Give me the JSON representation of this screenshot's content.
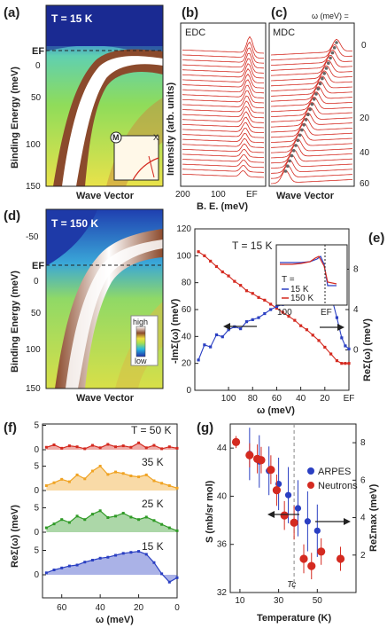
{
  "colors": {
    "red": "#d42a20",
    "blue": "#2a3fc2",
    "orange": "#f0a323",
    "green": "#2f9a26",
    "ediff": "#d0d0d0"
  },
  "panels": {
    "a": {
      "label": "(a)",
      "temp": "T = 15 K",
      "ylabel": "Binding Energy (meV)",
      "xlabel": "Wave Vector",
      "ef": "EF",
      "yticks": [
        "0",
        "50",
        "100",
        "150"
      ],
      "inset_m": "M",
      "inset_x": "X"
    },
    "b": {
      "label": "(b)",
      "title": "EDC",
      "ylabel": "Intensity (arb. units)",
      "xlabel": "B. E. (meV)",
      "xticks": [
        "200",
        "100",
        "EF"
      ]
    },
    "c": {
      "label": "(c)",
      "title": "MDC",
      "omega": "ω (meV) =",
      "xlabel": "Wave Vector",
      "rticks": [
        "0",
        "20",
        "40",
        "60"
      ]
    },
    "d": {
      "label": "(d)",
      "temp": "T = 150 K",
      "ylabel": "Binding Energy (meV)",
      "xlabel": "Wave Vector",
      "ef": "EF",
      "yticks": [
        "-50",
        "0",
        "50",
        "100",
        "150"
      ],
      "high": "high",
      "low": "low"
    },
    "e": {
      "label": "(e)",
      "temp": "T = 15 K",
      "ylabel": "-ImΣ(ω) (meV)",
      "ylabel_r": "ReΣ(ω) (meV)",
      "xlabel": "ω (meV)",
      "inset_t": "T =",
      "inset_15": "15 K",
      "inset_150": "150 K",
      "inset_xt": [
        "100",
        "EF"
      ]
    },
    "f": {
      "label": "(f)",
      "ylabel": "ReΣ(ω) (meV)",
      "xlabel": "ω (meV)"
    },
    "g": {
      "label": "(g)",
      "ylabel": "S (mb/sr mol)",
      "ylabel_r": "ReΣmax (meV)",
      "xlabel": "Temperature (K)",
      "tc": "Tc",
      "legend": [
        "ARPES",
        "Neutrons"
      ]
    }
  },
  "chart_data": [
    {
      "type": "line",
      "panel": "e",
      "title": "",
      "xlabel": "ω (meV)",
      "ylabel": "-ImΣ(ω) (meV)",
      "ylabel_right": "ReΣ(ω) (meV)",
      "xticks": [
        "100",
        "80",
        "60",
        "40",
        "20",
        "EF"
      ],
      "x_range": [
        128,
        0
      ],
      "ylim": [
        0,
        120
      ],
      "yticks": [
        0,
        20,
        40,
        60,
        80,
        100,
        120
      ],
      "ylim_right": [
        -4,
        12
      ],
      "yticks_right": [
        0,
        4,
        8
      ],
      "series": [
        {
          "axis": "left",
          "x": [
            125,
            120,
            115,
            110,
            105,
            100,
            95,
            90,
            85,
            80,
            75,
            70,
            65,
            60,
            55,
            50,
            45,
            40,
            35,
            30,
            25,
            20,
            15,
            10,
            6,
            3,
            0
          ],
          "values": [
            103,
            100,
            96,
            92,
            88,
            85,
            81,
            78,
            74,
            72,
            69,
            67,
            64,
            61,
            58,
            55,
            52,
            48,
            45,
            41,
            37,
            32,
            27,
            22,
            20,
            20,
            20
          ]
        },
        {
          "axis": "right",
          "x": [
            125,
            120,
            115,
            110,
            105,
            100,
            95,
            90,
            85,
            80,
            75,
            70,
            65,
            60,
            55,
            50,
            45,
            40,
            35,
            30,
            25,
            22,
            20,
            15,
            10,
            6,
            3,
            0
          ],
          "values": [
            -1,
            0.5,
            0.3,
            1.5,
            1.3,
            2.0,
            2.3,
            2.1,
            2.8,
            3.0,
            3.2,
            3.6,
            4.0,
            4.3,
            4.5,
            4.9,
            5.4,
            5.8,
            6.1,
            6.4,
            6.8,
            7.0,
            6.7,
            5.5,
            3.2,
            1.2,
            0.4,
            0.1
          ]
        }
      ]
    },
    {
      "type": "area",
      "panel": "f",
      "title": "",
      "xlabel": "ω (meV)",
      "ylabel": "ReΣ(ω) (meV)",
      "xticks": [
        60,
        40,
        20,
        0
      ],
      "x_range": [
        70,
        0
      ],
      "offset_yticks": [
        5,
        0
      ],
      "x": [
        68,
        64,
        60,
        56,
        52,
        48,
        44,
        40,
        36,
        32,
        28,
        24,
        20,
        16,
        12,
        8,
        4,
        0
      ],
      "series": [
        {
          "name": "T = 50 K",
          "values": [
            0.5,
            1.0,
            0.3,
            0.8,
            0.6,
            0.2,
            0.9,
            0.4,
            1.1,
            0.6,
            0.8,
            0.5,
            1.4,
            0.4,
            0.9,
            0.2,
            0.6,
            0.3
          ]
        },
        {
          "name": "35 K",
          "values": [
            1.0,
            1.6,
            2.3,
            1.8,
            3.2,
            2.4,
            4.0,
            5.0,
            3.3,
            3.8,
            3.5,
            3.0,
            2.8,
            3.2,
            2.0,
            1.5,
            1.0,
            0.5
          ]
        },
        {
          "name": "25 K",
          "values": [
            0.9,
            1.7,
            2.6,
            2.0,
            3.3,
            2.6,
            3.7,
            4.4,
            3.0,
            3.3,
            3.9,
            3.1,
            2.6,
            3.1,
            2.4,
            1.6,
            0.9,
            0.3
          ]
        },
        {
          "name": "15 K",
          "values": [
            0.4,
            1.0,
            1.4,
            1.8,
            2.0,
            2.6,
            3.0,
            3.4,
            3.6,
            4.0,
            4.4,
            4.6,
            4.8,
            4.2,
            2.5,
            0.2,
            -1.5,
            -0.6
          ]
        }
      ]
    },
    {
      "type": "scatter",
      "panel": "g",
      "title": "",
      "xlabel": "Temperature (K)",
      "ylabel": "S (mb/sr mol)",
      "ylabel_right": "ReΣmax (meV)",
      "xlim": [
        5,
        70
      ],
      "xticks": [
        10,
        30,
        50
      ],
      "ylim": [
        32,
        46
      ],
      "yticks": [
        32,
        36,
        40,
        44
      ],
      "ylim_right": [
        0,
        9
      ],
      "yticks_right": [
        2,
        4,
        6,
        8
      ],
      "tc": 38,
      "series": [
        {
          "name": "ARPES",
          "axis": "right",
          "x": [
            15,
            20,
            25,
            30,
            35,
            40,
            45,
            50
          ],
          "values": [
            7.4,
            7.0,
            6.5,
            5.8,
            5.2,
            4.5,
            3.8,
            3.3
          ],
          "err": [
            1.4,
            1.4,
            1.3,
            1.4,
            1.5,
            1.5,
            1.6,
            1.4
          ]
        },
        {
          "name": "Neutrons",
          "axis": "left",
          "x": [
            8,
            15,
            19,
            21,
            26,
            29,
            33,
            38,
            43,
            47,
            52,
            62
          ],
          "values": [
            44.5,
            43.4,
            43.1,
            43.0,
            42.2,
            40.5,
            38.4,
            37.8,
            34.8,
            34.2,
            35.4,
            34.8
          ],
          "err": [
            0.5,
            1.0,
            1.2,
            1.1,
            1.2,
            1.3,
            1.2,
            1.4,
            1.2,
            1.1,
            1.1,
            1.0
          ]
        }
      ]
    }
  ]
}
